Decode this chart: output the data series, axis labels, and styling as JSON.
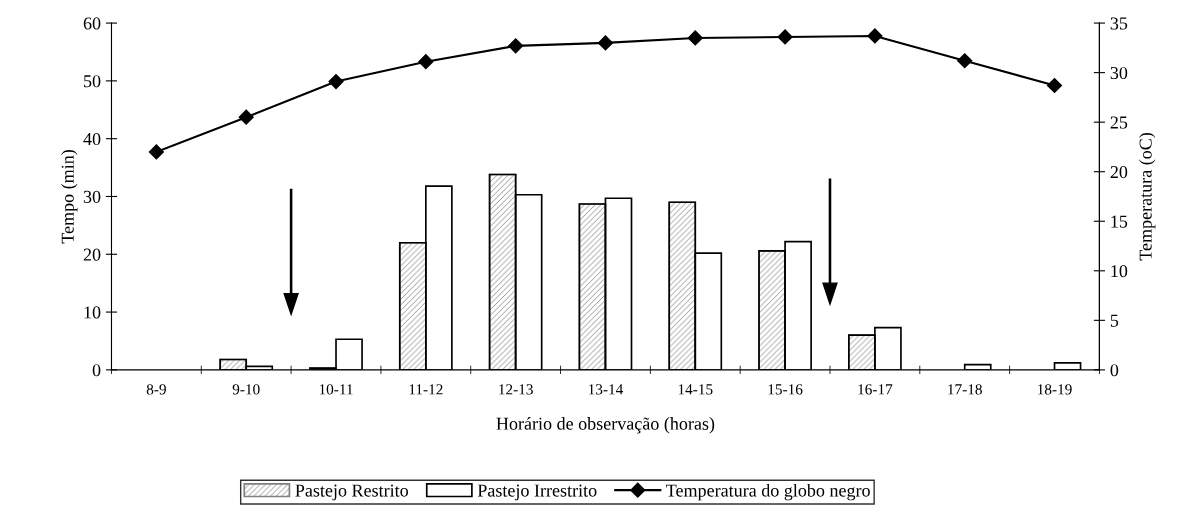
{
  "chart_data": {
    "type": "bar",
    "categories": [
      "8-9",
      "9-10",
      "10-11",
      "11-12",
      "12-13",
      "13-14",
      "14-15",
      "15-16",
      "16-17",
      "17-18",
      "18-19"
    ],
    "series": [
      {
        "name": "Pastejo Restrito",
        "color": "#808080",
        "values": [
          0,
          1.8,
          0.3,
          22,
          33.8,
          28.7,
          29,
          20.6,
          6,
          0,
          0
        ]
      },
      {
        "name": "Pastejo Irrestrito",
        "color": "#ffffff",
        "values": [
          0,
          0.6,
          5.3,
          31.8,
          30.3,
          29.7,
          20.2,
          22.2,
          7.3,
          0.9,
          1.2
        ]
      },
      {
        "name": "Temperatura do globo negro",
        "type": "line",
        "axis": "y2",
        "color": "#000000",
        "values": [
          22.0,
          25.5,
          29.1,
          31.1,
          32.7,
          33.0,
          33.5,
          33.6,
          33.7,
          31.2,
          28.7
        ]
      }
    ],
    "xlabel": "Horário de observação (horas)",
    "ylabel": "Tempo (min)",
    "y2label": "Temperatura (oC)",
    "ylim": [
      0,
      60
    ],
    "yticks": [
      0,
      10,
      20,
      30,
      40,
      50,
      60
    ],
    "y2lim": [
      0,
      35
    ],
    "y2ticks": [
      0,
      5,
      10,
      15,
      20,
      25,
      30,
      35
    ],
    "marker": "diamond",
    "line_style": "solid",
    "grid": false,
    "legend": "bottom"
  }
}
